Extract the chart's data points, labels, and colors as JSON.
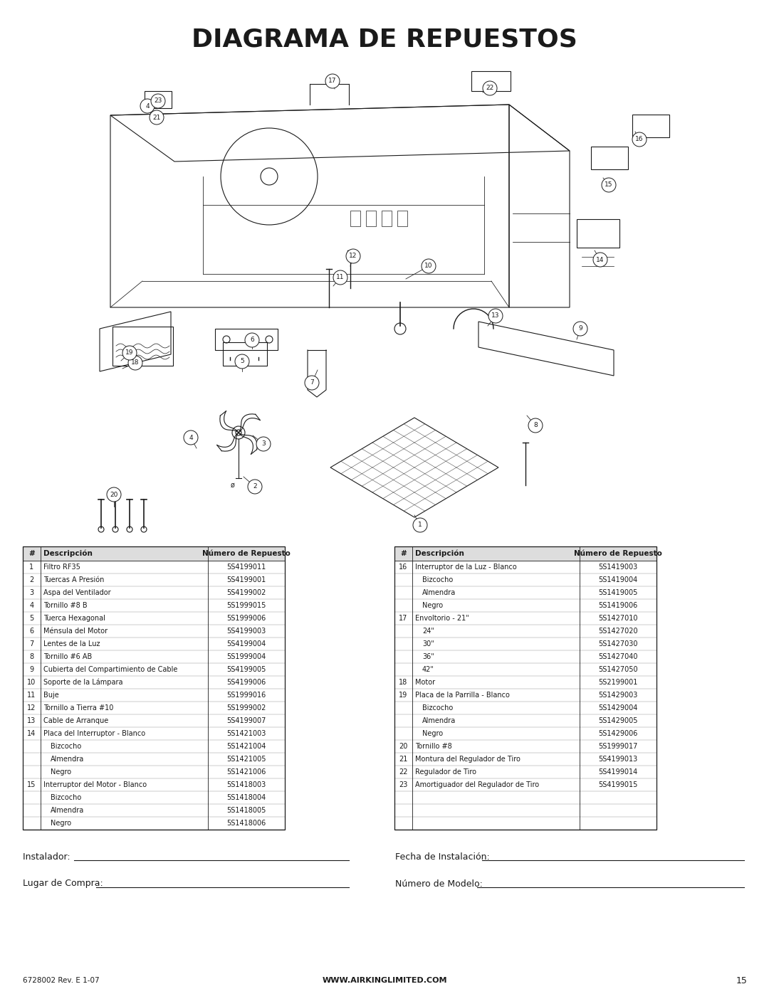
{
  "title": "DIAGRAMA DE REPUESTOS",
  "bg_color": "#ffffff",
  "text_color": "#1a1a1a",
  "table_left": {
    "header": [
      "#",
      "Descripción",
      "Número de Repuesto"
    ],
    "rows": [
      [
        "1",
        "Filtro RF35",
        "5S4199011"
      ],
      [
        "2",
        "Tuercas A Presión",
        "5S4199001"
      ],
      [
        "3",
        "Aspa del Ventilador",
        "5S4199002"
      ],
      [
        "4",
        "Tornillo #8 B",
        "5S1999015"
      ],
      [
        "5",
        "Tuerca Hexagonal",
        "5S1999006"
      ],
      [
        "6",
        "Ménsula del Motor",
        "5S4199003"
      ],
      [
        "7",
        "Lentes de la Luz",
        "5S4199004"
      ],
      [
        "8",
        "Tornillo #6 AB",
        "5S1999004"
      ],
      [
        "9",
        "Cubierta del Compartimiento de Cable",
        "5S4199005"
      ],
      [
        "10",
        "Soporte de la Lámpara",
        "5S4199006"
      ],
      [
        "11",
        "Buje",
        "5S1999016"
      ],
      [
        "12",
        "Tornillo a Tierra #10",
        "5S1999002"
      ],
      [
        "13",
        "Cable de Arranque",
        "5S4199007"
      ],
      [
        "14",
        "Placa del Interruptor - Blanco",
        "5S1421003"
      ],
      [
        "",
        "Bizcocho",
        "5S1421004"
      ],
      [
        "",
        "Almendra",
        "5S1421005"
      ],
      [
        "",
        "Negro",
        "5S1421006"
      ],
      [
        "15",
        "Interruptor del Motor - Blanco",
        "5S1418003"
      ],
      [
        "",
        "Bizcocho",
        "5S1418004"
      ],
      [
        "",
        "Almendra",
        "5S1418005"
      ],
      [
        "",
        "Negro",
        "5S1418006"
      ]
    ]
  },
  "table_right": {
    "header": [
      "#",
      "Descripción",
      "Número de Repuesto"
    ],
    "rows": [
      [
        "16",
        "Interruptor de la Luz - Blanco",
        "5S1419003"
      ],
      [
        "",
        "Bizcocho",
        "5S1419004"
      ],
      [
        "",
        "Almendra",
        "5S1419005"
      ],
      [
        "",
        "Negro",
        "5S1419006"
      ],
      [
        "17",
        "Envoltorio - 21\"",
        "5S1427010"
      ],
      [
        "",
        "24\"",
        "5S1427020"
      ],
      [
        "",
        "30\"",
        "5S1427030"
      ],
      [
        "",
        "36\"",
        "5S1427040"
      ],
      [
        "",
        "42\"",
        "5S1427050"
      ],
      [
        "18",
        "Motor",
        "5S2199001"
      ],
      [
        "19",
        "Placa de la Parrilla - Blanco",
        "5S1429003"
      ],
      [
        "",
        "Bizcocho",
        "5S1429004"
      ],
      [
        "",
        "Almendra",
        "5S1429005"
      ],
      [
        "",
        "Negro",
        "5S1429006"
      ],
      [
        "20",
        "Tornillo #8",
        "5S1999017"
      ],
      [
        "21",
        "Montura del Regulador de Tiro",
        "5S4199013"
      ],
      [
        "22",
        "Regulador de Tiro",
        "5S4199014"
      ],
      [
        "23",
        "Amortiguador del Regulador de Tiro",
        "5S4199015"
      ],
      [
        "",
        "",
        ""
      ],
      [
        "",
        "",
        ""
      ],
      [
        "",
        "",
        ""
      ]
    ]
  },
  "footer_left1": "Instalador: ",
  "footer_right1": "Fecha de Instalación: ",
  "footer_left2": "Lugar de Compra: ",
  "footer_right2": "Número de Modelo: ",
  "bottom_left": "6728002 Rev. E 1-07",
  "bottom_center": "WWW.AIRKINGLIMITED.COM",
  "bottom_right": "15"
}
